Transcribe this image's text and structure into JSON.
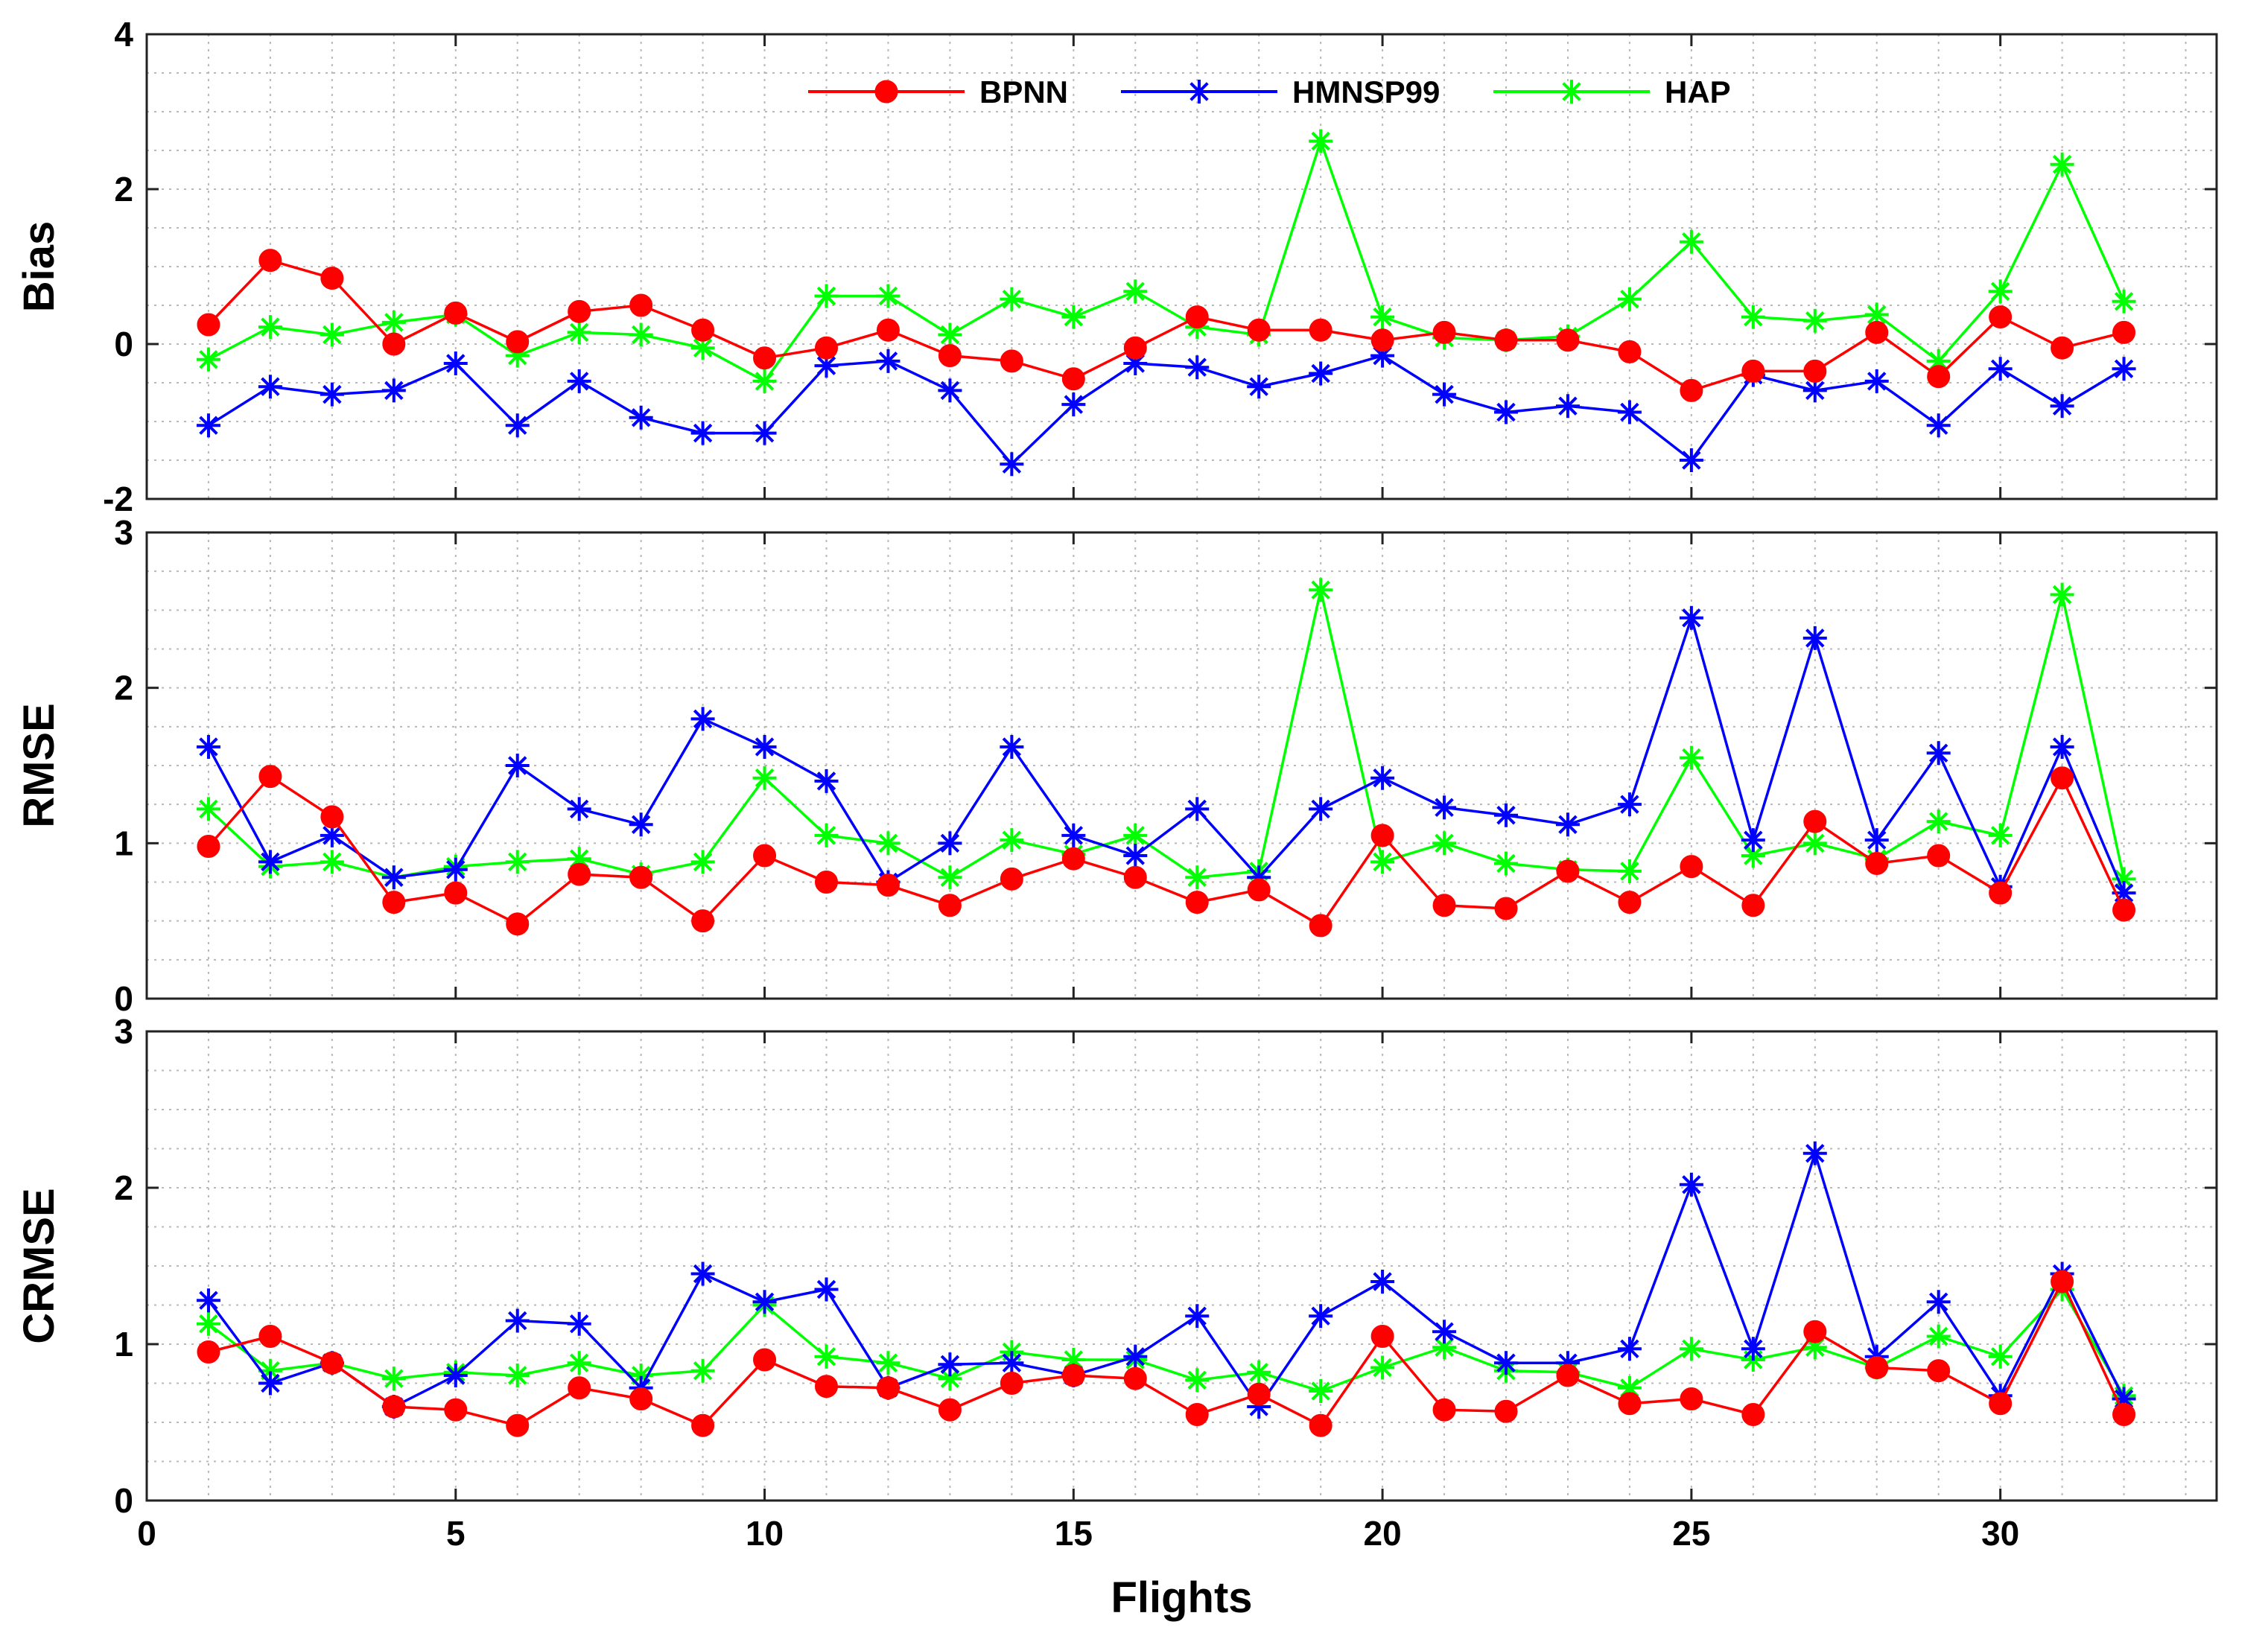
{
  "chart_data": {
    "type": "line",
    "xlabel": "Flights",
    "x": [
      1,
      2,
      3,
      4,
      5,
      6,
      7,
      8,
      9,
      10,
      11,
      12,
      13,
      14,
      15,
      16,
      17,
      18,
      19,
      20,
      21,
      22,
      23,
      24,
      25,
      26,
      27,
      28,
      29,
      30,
      31,
      32
    ],
    "xlim": [
      0,
      33.5
    ],
    "xticks": [
      0,
      5,
      10,
      15,
      20,
      25,
      30
    ],
    "legend": {
      "placement": "top-center",
      "entries": [
        {
          "name": "BPNN",
          "color": "#ff0000",
          "marker": "circle"
        },
        {
          "name": "HMNSP99",
          "color": "#0000ff",
          "marker": "asterisk"
        },
        {
          "name": "HAP",
          "color": "#00ff00",
          "marker": "asterisk"
        }
      ]
    },
    "panels": [
      {
        "ylabel": "Bias",
        "ylim": [
          -2,
          4
        ],
        "yticks": [
          -2,
          0,
          2,
          4
        ],
        "ytick_labels": [
          "-2",
          "0",
          "2",
          "4"
        ],
        "series": [
          {
            "name": "BPNN",
            "values": [
              0.25,
              1.08,
              0.85,
              0.0,
              0.4,
              0.03,
              0.42,
              0.5,
              0.18,
              -0.18,
              -0.05,
              0.18,
              -0.15,
              -0.22,
              -0.45,
              -0.05,
              0.35,
              0.18,
              0.18,
              0.05,
              0.15,
              0.05,
              0.05,
              -0.1,
              -0.6,
              -0.35,
              -0.35,
              0.15,
              -0.42,
              0.35,
              -0.05,
              0.15
            ]
          },
          {
            "name": "HMNSP99",
            "values": [
              -1.05,
              -0.55,
              -0.65,
              -0.6,
              -0.25,
              -1.05,
              -0.48,
              -0.95,
              -1.15,
              -1.15,
              -0.28,
              -0.22,
              -0.6,
              -1.55,
              -0.78,
              -0.25,
              -0.3,
              -0.55,
              -0.38,
              -0.15,
              -0.65,
              -0.88,
              -0.8,
              -0.88,
              -1.5,
              -0.4,
              -0.6,
              -0.48,
              -1.05,
              -0.32,
              -0.8,
              -0.32
            ]
          },
          {
            "name": "HAP",
            "values": [
              -0.2,
              0.22,
              0.12,
              0.28,
              0.38,
              -0.15,
              0.15,
              0.12,
              -0.05,
              -0.48,
              0.62,
              0.62,
              0.12,
              0.58,
              0.35,
              0.68,
              0.22,
              0.12,
              2.62,
              0.35,
              0.08,
              0.05,
              0.1,
              0.58,
              1.32,
              0.35,
              0.3,
              0.38,
              -0.22,
              0.68,
              2.32,
              0.55
            ]
          }
        ]
      },
      {
        "ylabel": "RMSE",
        "ylim": [
          0,
          3
        ],
        "yticks": [
          0,
          1,
          2,
          3
        ],
        "ytick_labels": [
          "0",
          "1",
          "2",
          "3"
        ],
        "series": [
          {
            "name": "BPNN",
            "values": [
              0.98,
              1.43,
              1.17,
              0.62,
              0.68,
              0.48,
              0.8,
              0.78,
              0.5,
              0.92,
              0.75,
              0.73,
              0.6,
              0.77,
              0.9,
              0.78,
              0.62,
              0.7,
              0.47,
              1.05,
              0.6,
              0.58,
              0.82,
              0.62,
              0.85,
              0.6,
              1.14,
              0.87,
              0.92,
              0.68,
              1.42,
              0.57
            ]
          },
          {
            "name": "HMNSP99",
            "values": [
              1.62,
              0.88,
              1.05,
              0.78,
              0.83,
              1.5,
              1.22,
              1.12,
              1.8,
              1.62,
              1.4,
              0.75,
              1.0,
              1.62,
              1.05,
              0.92,
              1.22,
              0.78,
              1.22,
              1.42,
              1.23,
              1.18,
              1.12,
              1.25,
              2.45,
              1.02,
              2.32,
              1.02,
              1.58,
              0.72,
              1.62,
              0.68
            ]
          },
          {
            "name": "HAP",
            "values": [
              1.22,
              0.85,
              0.88,
              0.78,
              0.85,
              0.88,
              0.9,
              0.8,
              0.88,
              1.42,
              1.05,
              1.0,
              0.78,
              1.02,
              0.93,
              1.05,
              0.78,
              0.82,
              2.63,
              0.88,
              1.0,
              0.87,
              0.83,
              0.82,
              1.55,
              0.92,
              1.0,
              0.9,
              1.14,
              1.05,
              2.6,
              0.77
            ]
          }
        ]
      },
      {
        "ylabel": "CRMSE",
        "ylim": [
          0,
          3
        ],
        "yticks": [
          0,
          1,
          2,
          3
        ],
        "ytick_labels": [
          "0",
          "1",
          "2",
          "3"
        ],
        "series": [
          {
            "name": "BPNN",
            "values": [
              0.95,
              1.05,
              0.88,
              0.6,
              0.58,
              0.48,
              0.72,
              0.65,
              0.48,
              0.9,
              0.73,
              0.72,
              0.58,
              0.75,
              0.8,
              0.78,
              0.55,
              0.68,
              0.48,
              1.05,
              0.58,
              0.57,
              0.8,
              0.62,
              0.65,
              0.55,
              1.08,
              0.85,
              0.83,
              0.62,
              1.4,
              0.55
            ]
          },
          {
            "name": "HMNSP99",
            "values": [
              1.28,
              0.75,
              0.88,
              0.6,
              0.8,
              1.15,
              1.13,
              0.72,
              1.45,
              1.27,
              1.35,
              0.72,
              0.87,
              0.88,
              0.8,
              0.92,
              1.18,
              0.6,
              1.18,
              1.4,
              1.08,
              0.88,
              0.88,
              0.97,
              2.02,
              0.97,
              2.22,
              0.92,
              1.27,
              0.67,
              1.45,
              0.65
            ]
          },
          {
            "name": "HAP",
            "values": [
              1.13,
              0.83,
              0.88,
              0.78,
              0.82,
              0.8,
              0.88,
              0.8,
              0.83,
              1.25,
              0.92,
              0.88,
              0.78,
              0.95,
              0.9,
              0.9,
              0.77,
              0.82,
              0.7,
              0.85,
              0.98,
              0.83,
              0.82,
              0.72,
              0.97,
              0.9,
              0.98,
              0.85,
              1.05,
              0.92,
              1.35,
              0.67
            ]
          }
        ]
      }
    ]
  }
}
